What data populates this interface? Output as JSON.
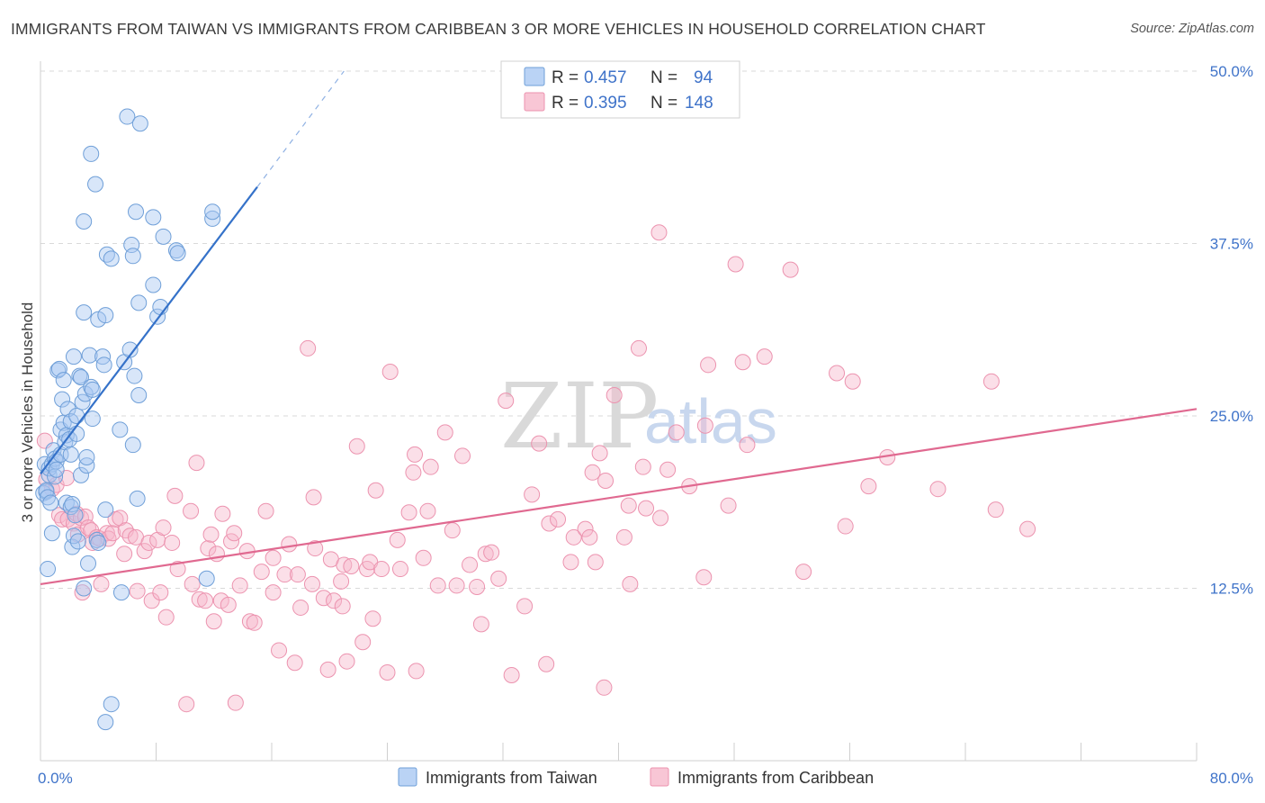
{
  "header": {
    "title": "IMMIGRANTS FROM TAIWAN VS IMMIGRANTS FROM CARIBBEAN 3 OR MORE VEHICLES IN HOUSEHOLD CORRELATION CHART",
    "source": "Source: ZipAtlas.com"
  },
  "watermark": {
    "zip": "ZIP",
    "atlas": "atlas"
  },
  "legend": {
    "rows": [
      {
        "r_label": "R = ",
        "r_value": "0.457",
        "n_label": "N = ",
        "n_value": "94",
        "color": "#a9c8f2"
      },
      {
        "r_label": "R = ",
        "r_value": "0.395",
        "n_label": "N = ",
        "n_value": "148",
        "color": "#f6b8cb"
      }
    ]
  },
  "colors": {
    "taiwan_fill": "#a9c8f2",
    "taiwan_stroke": "#6f9fd8",
    "taiwan_line": "#3572c9",
    "caribbean_fill": "#f6b8cb",
    "caribbean_stroke": "#ec93af",
    "caribbean_line": "#e06990",
    "grid": "#d9d9d9",
    "tick": "#3f73c9"
  },
  "chart_data": {
    "type": "scatter",
    "title": "IMMIGRANTS FROM TAIWAN VS IMMIGRANTS FROM CARIBBEAN 3 OR MORE VEHICLES IN HOUSEHOLD CORRELATION CHART",
    "xlabel": "",
    "ylabel": "3 or more Vehicles in Household",
    "xlim": [
      0,
      80
    ],
    "ylim": [
      0,
      50
    ],
    "x_tick_labels": [
      "0.0%",
      "80.0%"
    ],
    "y_ticks": [
      12.5,
      25.0,
      37.5,
      50.0
    ],
    "y_tick_labels": [
      "12.5%",
      "25.0%",
      "37.5%",
      "50.0%"
    ],
    "grid": true,
    "legend_position": "top-center",
    "series": [
      {
        "name": "Immigrants from Taiwan",
        "R": 0.457,
        "N": 94,
        "trend": {
          "x": [
            0,
            15
          ],
          "y": [
            20.8,
            41.6
          ],
          "dashed_to": {
            "x": 21,
            "y": 50.0
          }
        },
        "points": [
          [
            0.2,
            19.4
          ],
          [
            0.3,
            21.5
          ],
          [
            0.4,
            19.5
          ],
          [
            0.4,
            19.6
          ],
          [
            0.5,
            13.9
          ],
          [
            0.5,
            19.1
          ],
          [
            0.6,
            20.7
          ],
          [
            0.6,
            21.2
          ],
          [
            0.7,
            18.7
          ],
          [
            0.8,
            21.5
          ],
          [
            0.8,
            16.5
          ],
          [
            0.9,
            22.5
          ],
          [
            1.0,
            21.9
          ],
          [
            1.0,
            20.6
          ],
          [
            1.1,
            21.7
          ],
          [
            1.1,
            21.1
          ],
          [
            1.2,
            28.3
          ],
          [
            1.3,
            28.4
          ],
          [
            1.4,
            22.2
          ],
          [
            1.4,
            24.0
          ],
          [
            1.5,
            26.2
          ],
          [
            1.6,
            24.5
          ],
          [
            1.6,
            27.6
          ],
          [
            1.7,
            23.1
          ],
          [
            1.8,
            23.6
          ],
          [
            1.8,
            18.7
          ],
          [
            1.9,
            25.5
          ],
          [
            2.0,
            23.3
          ],
          [
            2.1,
            24.6
          ],
          [
            2.1,
            22.2
          ],
          [
            2.1,
            18.4
          ],
          [
            2.2,
            18.6
          ],
          [
            2.2,
            15.5
          ],
          [
            2.3,
            29.3
          ],
          [
            2.3,
            16.3
          ],
          [
            2.4,
            17.8
          ],
          [
            2.5,
            23.7
          ],
          [
            2.5,
            25.0
          ],
          [
            2.6,
            15.9
          ],
          [
            2.7,
            27.9
          ],
          [
            2.8,
            27.8
          ],
          [
            2.8,
            20.7
          ],
          [
            2.9,
            26.0
          ],
          [
            3.0,
            39.1
          ],
          [
            3.0,
            32.5
          ],
          [
            3.0,
            12.5
          ],
          [
            3.1,
            26.6
          ],
          [
            3.2,
            21.4
          ],
          [
            3.2,
            22.0
          ],
          [
            3.3,
            14.3
          ],
          [
            3.4,
            29.4
          ],
          [
            3.5,
            44.0
          ],
          [
            3.5,
            27.1
          ],
          [
            3.6,
            26.9
          ],
          [
            3.6,
            24.8
          ],
          [
            3.8,
            41.8
          ],
          [
            3.9,
            16.0
          ],
          [
            4.0,
            32.0
          ],
          [
            4.0,
            15.8
          ],
          [
            4.3,
            29.3
          ],
          [
            4.4,
            28.7
          ],
          [
            4.5,
            32.3
          ],
          [
            4.5,
            18.2
          ],
          [
            4.6,
            36.7
          ],
          [
            4.9,
            36.4
          ],
          [
            4.9,
            4.1
          ],
          [
            4.5,
            2.8
          ],
          [
            5.5,
            24.0
          ],
          [
            5.6,
            12.2
          ],
          [
            5.8,
            28.9
          ],
          [
            6.0,
            46.7
          ],
          [
            6.2,
            29.8
          ],
          [
            6.3,
            37.4
          ],
          [
            6.4,
            36.6
          ],
          [
            6.4,
            22.9
          ],
          [
            6.5,
            27.9
          ],
          [
            6.6,
            39.8
          ],
          [
            6.7,
            19.0
          ],
          [
            6.8,
            33.2
          ],
          [
            6.8,
            26.5
          ],
          [
            6.9,
            46.2
          ],
          [
            7.8,
            39.4
          ],
          [
            7.8,
            34.5
          ],
          [
            8.1,
            32.2
          ],
          [
            8.3,
            32.9
          ],
          [
            8.5,
            38.0
          ],
          [
            9.4,
            37.0
          ],
          [
            9.5,
            36.8
          ],
          [
            11.9,
            39.3
          ],
          [
            11.9,
            39.8
          ],
          [
            11.5,
            13.2
          ]
        ]
      },
      {
        "name": "Immigrants from Caribbean",
        "R": 0.395,
        "N": 148,
        "trend": {
          "x": [
            0,
            80
          ],
          "y": [
            12.8,
            25.5
          ]
        },
        "points": [
          [
            0.3,
            23.2
          ],
          [
            0.4,
            20.4
          ],
          [
            0.8,
            19.7
          ],
          [
            1.1,
            20.0
          ],
          [
            1.3,
            17.8
          ],
          [
            1.5,
            17.5
          ],
          [
            1.8,
            20.5
          ],
          [
            1.9,
            17.5
          ],
          [
            2.3,
            17.2
          ],
          [
            2.5,
            17.9
          ],
          [
            2.6,
            16.4
          ],
          [
            2.8,
            17.6
          ],
          [
            2.9,
            12.2
          ],
          [
            3.1,
            17.7
          ],
          [
            3.3,
            16.9
          ],
          [
            3.5,
            16.7
          ],
          [
            3.6,
            15.8
          ],
          [
            3.9,
            16.2
          ],
          [
            4.1,
            16.1
          ],
          [
            4.2,
            12.8
          ],
          [
            4.6,
            16.5
          ],
          [
            4.7,
            16.1
          ],
          [
            5.0,
            16.5
          ],
          [
            5.2,
            17.5
          ],
          [
            5.5,
            17.6
          ],
          [
            5.8,
            15.0
          ],
          [
            5.9,
            16.7
          ],
          [
            6.2,
            16.3
          ],
          [
            6.6,
            16.2
          ],
          [
            6.7,
            12.3
          ],
          [
            7.2,
            15.2
          ],
          [
            7.5,
            15.8
          ],
          [
            7.7,
            11.6
          ],
          [
            8.1,
            16.0
          ],
          [
            8.3,
            12.2
          ],
          [
            8.5,
            16.9
          ],
          [
            8.7,
            10.4
          ],
          [
            9.1,
            15.8
          ],
          [
            9.3,
            19.2
          ],
          [
            9.5,
            13.9
          ],
          [
            10.1,
            4.1
          ],
          [
            10.4,
            18.1
          ],
          [
            10.5,
            12.8
          ],
          [
            10.8,
            21.6
          ],
          [
            11.0,
            11.7
          ],
          [
            11.4,
            11.6
          ],
          [
            11.6,
            15.4
          ],
          [
            11.8,
            16.4
          ],
          [
            12.0,
            10.1
          ],
          [
            12.2,
            15.0
          ],
          [
            12.5,
            11.6
          ],
          [
            12.6,
            17.9
          ],
          [
            13.0,
            11.3
          ],
          [
            13.2,
            15.9
          ],
          [
            13.4,
            16.5
          ],
          [
            13.5,
            4.2
          ],
          [
            13.8,
            12.7
          ],
          [
            14.5,
            10.1
          ],
          [
            14.3,
            15.2
          ],
          [
            14.8,
            10.0
          ],
          [
            15.3,
            13.7
          ],
          [
            15.6,
            18.1
          ],
          [
            16.1,
            12.2
          ],
          [
            16.1,
            14.7
          ],
          [
            16.5,
            8.0
          ],
          [
            16.9,
            13.5
          ],
          [
            17.2,
            15.7
          ],
          [
            17.6,
            7.1
          ],
          [
            17.8,
            13.5
          ],
          [
            18.0,
            11.1
          ],
          [
            18.5,
            29.9
          ],
          [
            18.8,
            12.8
          ],
          [
            18.9,
            19.1
          ],
          [
            19.0,
            15.4
          ],
          [
            19.6,
            11.8
          ],
          [
            19.9,
            6.6
          ],
          [
            20.1,
            14.6
          ],
          [
            20.3,
            11.6
          ],
          [
            20.8,
            13.0
          ],
          [
            20.9,
            11.2
          ],
          [
            21.0,
            14.2
          ],
          [
            21.2,
            7.2
          ],
          [
            21.5,
            14.1
          ],
          [
            21.9,
            22.8
          ],
          [
            22.3,
            8.6
          ],
          [
            22.6,
            13.9
          ],
          [
            22.8,
            14.4
          ],
          [
            23.0,
            10.3
          ],
          [
            23.2,
            19.6
          ],
          [
            23.6,
            13.9
          ],
          [
            24.0,
            6.4
          ],
          [
            24.2,
            28.2
          ],
          [
            24.7,
            16.0
          ],
          [
            24.9,
            13.9
          ],
          [
            25.5,
            18.0
          ],
          [
            25.8,
            20.9
          ],
          [
            25.9,
            22.2
          ],
          [
            26.0,
            6.5
          ],
          [
            26.5,
            14.7
          ],
          [
            26.8,
            18.1
          ],
          [
            27.0,
            21.3
          ],
          [
            27.5,
            12.7
          ],
          [
            28.0,
            23.8
          ],
          [
            28.5,
            16.7
          ],
          [
            28.8,
            12.7
          ],
          [
            29.2,
            22.1
          ],
          [
            29.7,
            14.2
          ],
          [
            30.2,
            12.6
          ],
          [
            30.5,
            9.9
          ],
          [
            30.8,
            15.0
          ],
          [
            31.2,
            15.1
          ],
          [
            31.7,
            13.2
          ],
          [
            32.2,
            26.1
          ],
          [
            32.6,
            6.2
          ],
          [
            33.5,
            11.2
          ],
          [
            34.0,
            19.3
          ],
          [
            34.5,
            23.0
          ],
          [
            35.0,
            7.0
          ],
          [
            35.2,
            17.2
          ],
          [
            35.8,
            17.5
          ],
          [
            36.7,
            14.4
          ],
          [
            36.9,
            16.2
          ],
          [
            37.7,
            16.8
          ],
          [
            38.0,
            16.2
          ],
          [
            38.4,
            14.4
          ],
          [
            38.2,
            20.9
          ],
          [
            38.7,
            22.3
          ],
          [
            39.0,
            5.3
          ],
          [
            39.1,
            20.3
          ],
          [
            39.7,
            26.5
          ],
          [
            40.4,
            16.2
          ],
          [
            40.7,
            18.5
          ],
          [
            40.8,
            12.8
          ],
          [
            41.4,
            29.9
          ],
          [
            41.7,
            21.3
          ],
          [
            41.9,
            18.3
          ],
          [
            42.8,
            38.3
          ],
          [
            42.9,
            17.6
          ],
          [
            43.4,
            21.1
          ],
          [
            44.0,
            23.8
          ],
          [
            44.9,
            19.9
          ],
          [
            46.0,
            24.3
          ],
          [
            45.9,
            13.3
          ],
          [
            46.2,
            28.7
          ],
          [
            47.6,
            18.5
          ],
          [
            48.1,
            36.0
          ],
          [
            48.6,
            28.9
          ],
          [
            48.9,
            22.9
          ],
          [
            50.1,
            29.3
          ],
          [
            51.9,
            35.6
          ],
          [
            52.8,
            13.7
          ],
          [
            55.1,
            28.1
          ],
          [
            55.7,
            17.0
          ],
          [
            56.2,
            27.5
          ],
          [
            57.3,
            19.9
          ],
          [
            58.6,
            22.0
          ],
          [
            62.1,
            19.7
          ],
          [
            65.8,
            27.5
          ],
          [
            66.1,
            18.2
          ],
          [
            68.3,
            16.8
          ]
        ]
      }
    ]
  },
  "bottom_legend": {
    "items": [
      {
        "label": "Immigrants from Taiwan"
      },
      {
        "label": "Immigrants from Caribbean"
      }
    ]
  }
}
